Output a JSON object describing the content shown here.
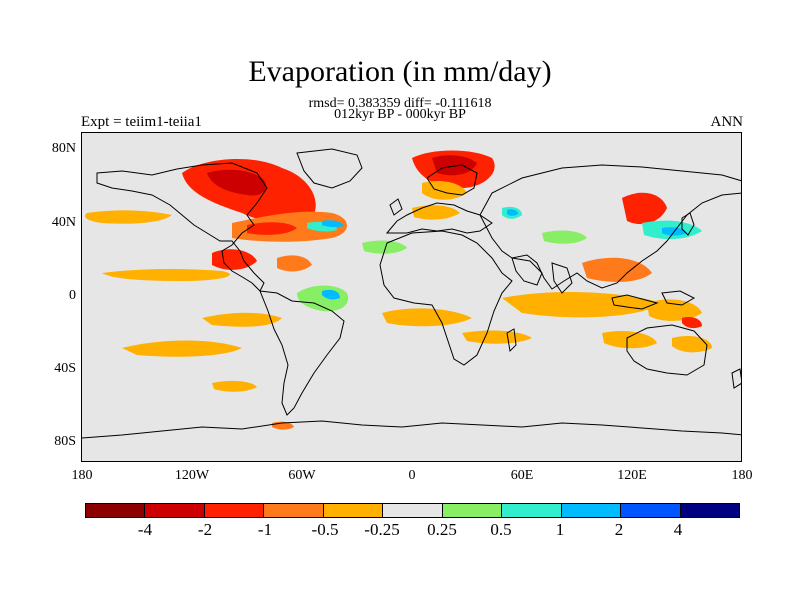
{
  "header": {
    "title": "Evaporation (in mm/day)",
    "stats": "rmsd= 0.383359 diff= -0.111618",
    "period": "012kyr BP - 000kyr BP",
    "experiment": "Expt = teiim1-teiia1",
    "season": "ANN"
  },
  "axes": {
    "lat_labels": [
      "80N",
      "40N",
      "0",
      "40S",
      "80S"
    ],
    "lon_labels": [
      "180",
      "120W",
      "60W",
      "0",
      "60E",
      "120E",
      "180"
    ]
  },
  "colorbar": {
    "colors": [
      "#8b0000",
      "#cc0000",
      "#ff2200",
      "#ff7a1a",
      "#ffb000",
      "#e6e6e6",
      "#88ee66",
      "#33eecc",
      "#00bbff",
      "#0055ff",
      "#000080"
    ],
    "labels": [
      "-4",
      "-2",
      "-1",
      "-0.5",
      "-0.25",
      "0.25",
      "0.5",
      "1",
      "2",
      "4"
    ]
  },
  "map": {
    "background": "#e6e6e6",
    "coast_color": "#000000"
  }
}
